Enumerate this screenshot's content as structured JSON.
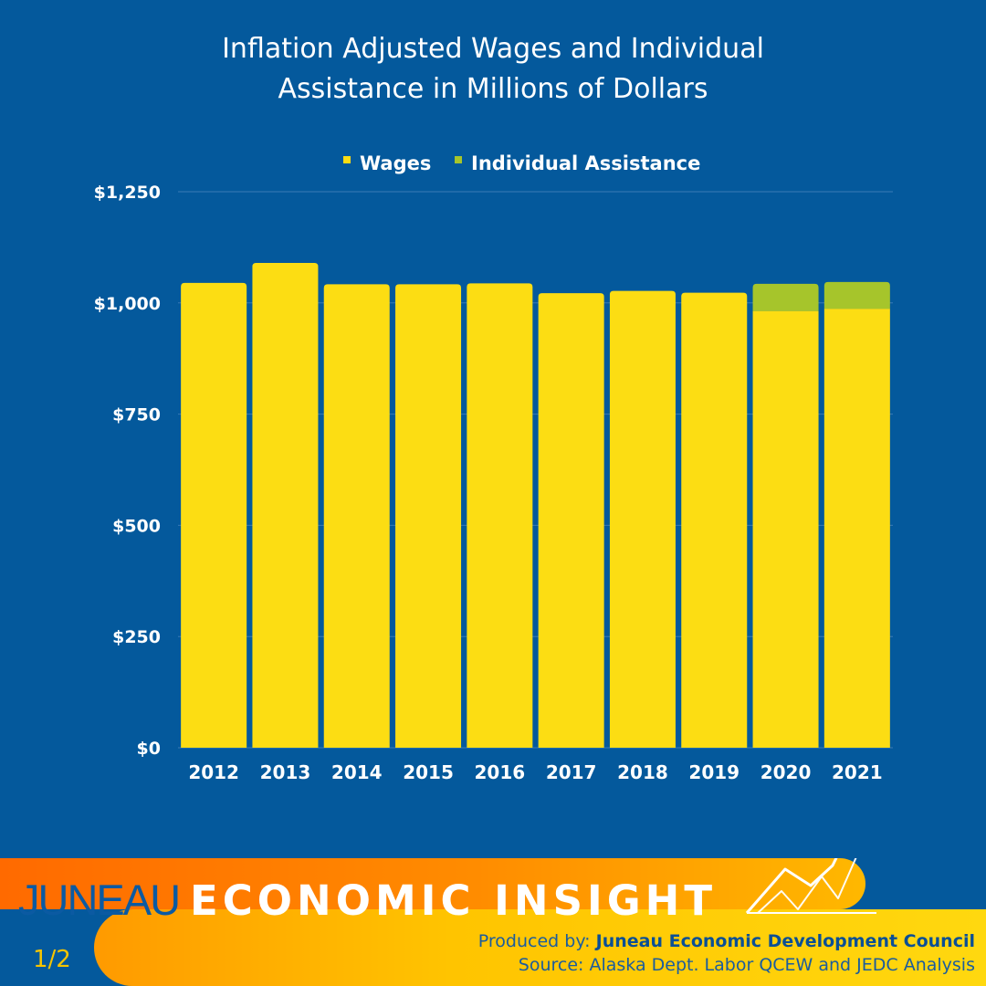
{
  "title_line1": "Inflation Adjusted Wages and Individual",
  "title_line2": "Assistance in Millions of Dollars",
  "footer": {
    "brand_left": "JUNEAU",
    "brand_right": "ECONOMIC INSIGHT",
    "page": "1/2",
    "produced_label": "Produced by: ",
    "produced_org": "Juneau Economic Development Council",
    "source": "Source: Alaska Dept. Labor QCEW and JEDC Analysis"
  },
  "colors": {
    "background": "#04599c",
    "wages": "#fcdd13",
    "individual_assistance": "#a6c52b",
    "footer_orange": "#ff7a00",
    "footer_yellow": "#ffd30a"
  },
  "chart_data": {
    "type": "bar",
    "stacked": true,
    "categories": [
      "2012",
      "2013",
      "2014",
      "2015",
      "2016",
      "2017",
      "2018",
      "2019",
      "2020",
      "2021"
    ],
    "series": [
      {
        "name": "Wages",
        "values": [
          1045,
          1090,
          1042,
          1042,
          1044,
          1022,
          1027,
          1023,
          982,
          987
        ]
      },
      {
        "name": "Individual Assistance",
        "values": [
          0,
          0,
          0,
          0,
          0,
          0,
          0,
          0,
          61,
          60
        ]
      }
    ],
    "ylim": [
      0,
      1250
    ],
    "yticks": [
      0,
      250,
      500,
      750,
      1000,
      1250
    ],
    "ytick_labels": [
      "$0",
      "$250",
      "$500",
      "$750",
      "$1,000",
      "$1,250"
    ],
    "legend": "top",
    "grid": true
  }
}
